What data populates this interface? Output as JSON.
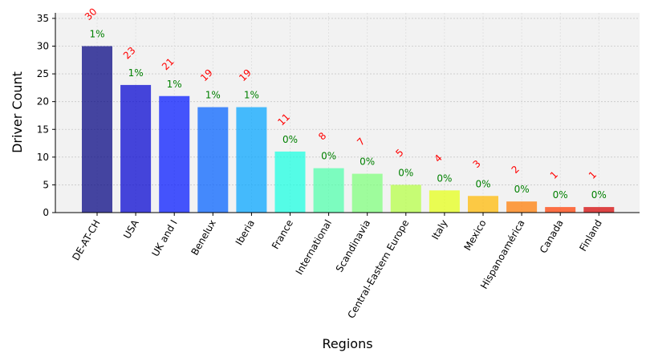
{
  "chart_data": {
    "type": "bar",
    "title": "",
    "xlabel": "Regions",
    "ylabel": "Driver Count",
    "ylim": [
      0,
      36
    ],
    "yticks": [
      0,
      5,
      10,
      15,
      20,
      25,
      30,
      35
    ],
    "grid": true,
    "categories": [
      "DE-AT-CH",
      "USA",
      "UK and I",
      "Benelux",
      "Iberia",
      "France",
      "International",
      "Scandinavia",
      "Central-Eastern Europe",
      "Italy",
      "Mexico",
      "Hispanoamérica",
      "Canada",
      "Finland"
    ],
    "values": [
      30,
      23,
      21,
      19,
      19,
      11,
      8,
      7,
      5,
      4,
      3,
      2,
      1,
      1
    ],
    "percent_labels": [
      "1%",
      "1%",
      "1%",
      "1%",
      "1%",
      "0%",
      "0%",
      "0%",
      "0%",
      "0%",
      "0%",
      "0%",
      "0%",
      "0%"
    ],
    "bar_colors": [
      "#000080",
      "#0000d0",
      "#0015ff",
      "#0060ff",
      "#00a4ff",
      "#16ffe1",
      "#4dffaa",
      "#7dff7a",
      "#b4ff43",
      "#e4ff13",
      "#ffb900",
      "#ff7a00",
      "#ff3b00",
      "#d40000"
    ],
    "count_label_color": "#ff0000",
    "percent_label_color": "#008000"
  }
}
